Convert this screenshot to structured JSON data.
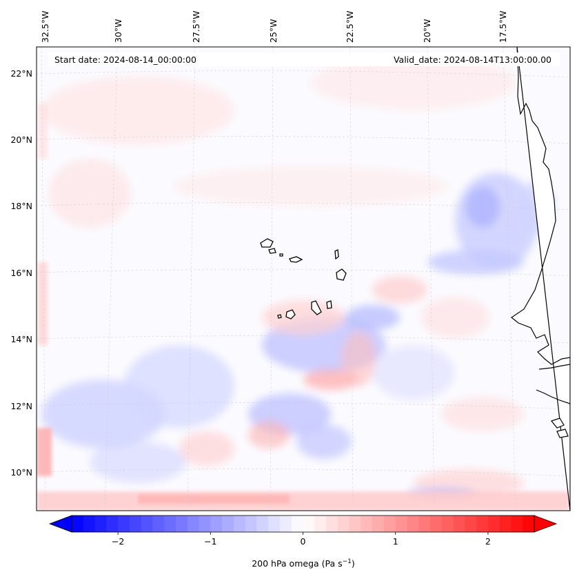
{
  "map": {
    "start_date_label": "Start date: 2024-08-14_00:00:00",
    "valid_date_label": "Valid_date: 2024-08-14T13:00:00.00",
    "lon_ticks": [
      "32.5°W",
      "30°W",
      "27.5°W",
      "25°W",
      "22.5°W",
      "20°W",
      "17.5°W"
    ],
    "lat_ticks": [
      "22°N",
      "20°N",
      "18°N",
      "16°N",
      "14°N",
      "12°N",
      "10°N"
    ],
    "extent": {
      "lon_min": -33.0,
      "lon_max": -16.0,
      "lat_min": 8.8,
      "lat_max": 22.8
    },
    "features": [
      "Cabo Verde islands",
      "West African coastline (Mauritania, Senegal, Gambia, Guinea-Bissau)"
    ]
  },
  "colorbar": {
    "tick_labels": [
      "−2",
      "−1",
      "0",
      "1",
      "2"
    ],
    "tick_values": [
      -2,
      -1,
      0,
      1,
      2
    ],
    "range": [
      -2.5,
      2.5
    ],
    "label": "200 hPa omega (Pa s",
    "label_sup": "−1",
    "label_end": ")",
    "colors": {
      "min": "#0000ff",
      "mid": "#ffffff",
      "max": "#ff0000"
    }
  }
}
